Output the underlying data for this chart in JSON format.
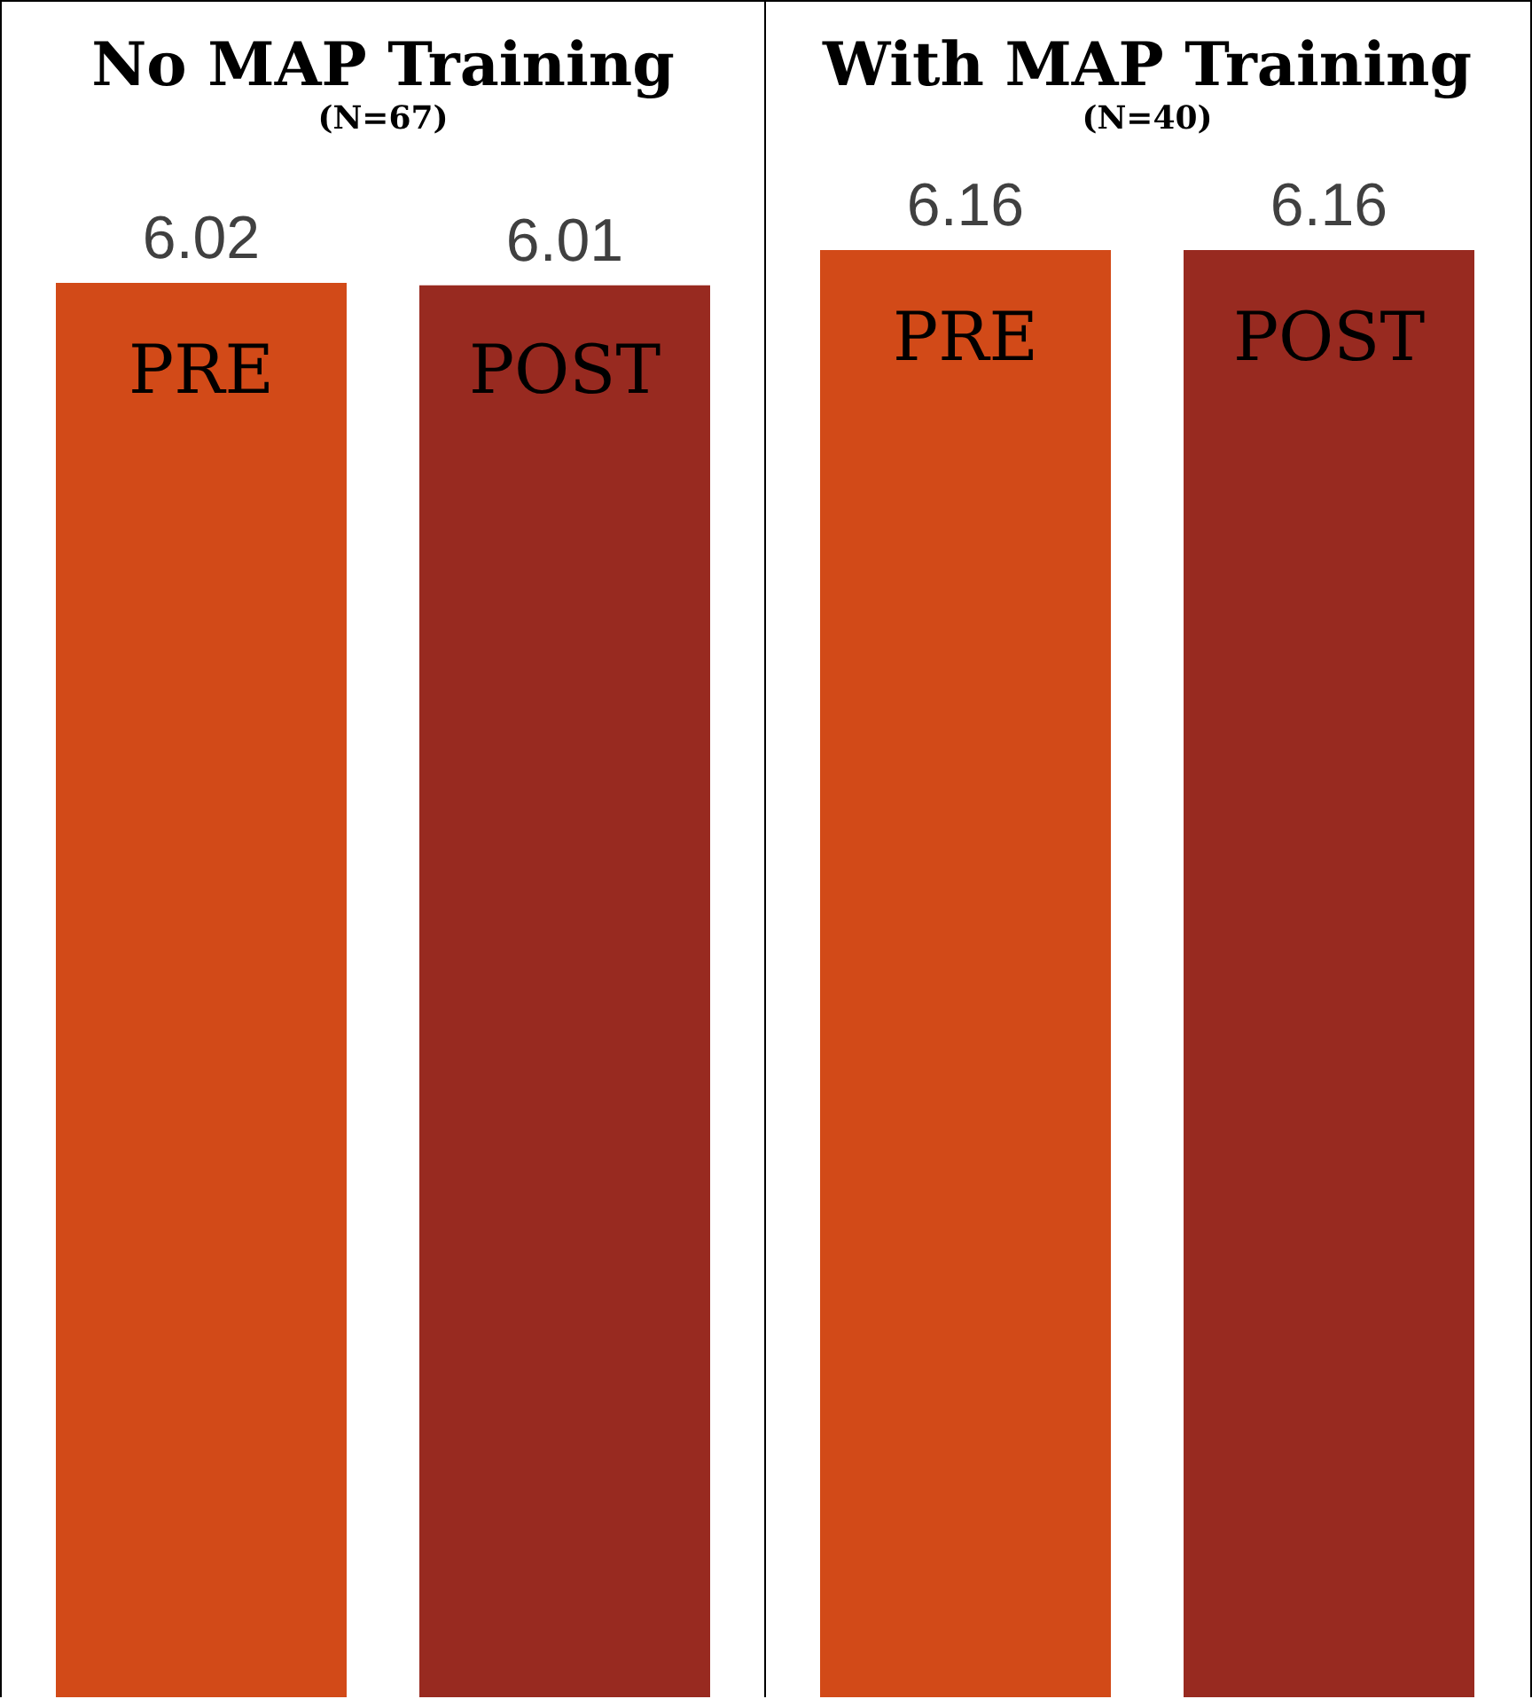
{
  "chart_data": [
    {
      "type": "bar",
      "title": "No MAP Training",
      "subtitle": "(N=67)",
      "categories": [
        "PRE",
        "POST"
      ],
      "values": [
        6.02,
        6.01
      ],
      "colors": [
        "#d24a18",
        "#982a20"
      ],
      "data_labels": true
    },
    {
      "type": "bar",
      "title": "With MAP Training",
      "subtitle": "(N=40)",
      "categories": [
        "PRE",
        "POST"
      ],
      "values": [
        6.16,
        6.16
      ],
      "colors": [
        "#d24a18",
        "#982a20"
      ],
      "data_labels": true
    }
  ]
}
